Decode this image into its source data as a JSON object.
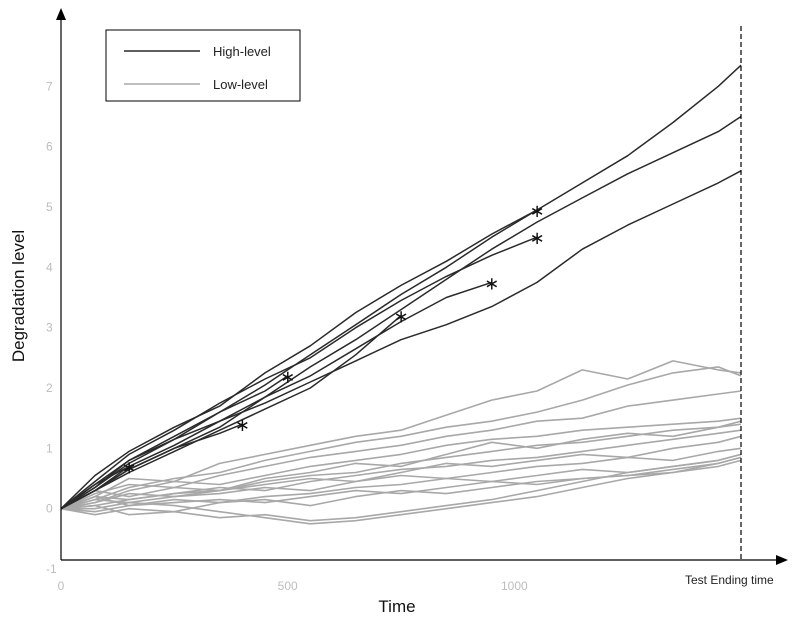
{
  "chart_data": {
    "type": "line",
    "title": "",
    "xlabel": "Time",
    "ylabel": "Degradation level",
    "xlim": [
      0,
      1500
    ],
    "ylim": [
      -1,
      8
    ],
    "x_ticks": [
      0,
      500,
      1000
    ],
    "y_ticks": [
      -1,
      0,
      1,
      2,
      3,
      4,
      5,
      6,
      7
    ],
    "annotation": "Test Ending time",
    "test_end_x": 1500,
    "legend": {
      "placement": "top-left",
      "entries": [
        {
          "name": "High-level",
          "color": "#2a2a2a"
        },
        {
          "name": "Low-level",
          "color": "#a8a8a8"
        }
      ]
    },
    "series": [
      {
        "group": "High-level",
        "color": "#2a2a2a",
        "marker_end": false,
        "x": [
          0,
          75,
          150,
          250,
          350,
          450,
          550,
          650,
          750,
          850,
          950,
          1050,
          1150,
          1250,
          1350,
          1450,
          1500
        ],
        "y": [
          0,
          0.55,
          0.95,
          1.35,
          1.7,
          2.25,
          2.7,
          3.25,
          3.7,
          4.1,
          4.55,
          4.95,
          5.4,
          5.85,
          6.4,
          7.0,
          7.35
        ]
      },
      {
        "group": "High-level",
        "color": "#2a2a2a",
        "marker_end": false,
        "x": [
          0,
          75,
          150,
          250,
          350,
          450,
          550,
          650,
          750,
          850,
          950,
          1050,
          1150,
          1250,
          1350,
          1450,
          1500
        ],
        "y": [
          0,
          0.3,
          0.65,
          1.0,
          1.35,
          1.85,
          2.35,
          2.8,
          3.3,
          3.8,
          4.3,
          4.75,
          5.15,
          5.55,
          5.9,
          6.25,
          6.5
        ]
      },
      {
        "group": "High-level",
        "color": "#2a2a2a",
        "marker_end": false,
        "x": [
          0,
          75,
          150,
          250,
          350,
          450,
          550,
          650,
          750,
          850,
          950,
          1050,
          1150,
          1250,
          1350,
          1450,
          1500
        ],
        "y": [
          0,
          0.4,
          0.8,
          1.15,
          1.45,
          1.75,
          2.1,
          2.45,
          2.8,
          3.05,
          3.35,
          3.75,
          4.3,
          4.7,
          5.05,
          5.4,
          5.6
        ]
      },
      {
        "group": "High-level",
        "color": "#2a2a2a",
        "marker_end": true,
        "x": [
          0,
          75,
          150,
          250,
          350,
          450,
          550,
          650,
          750,
          850,
          950,
          1050
        ],
        "y": [
          0,
          0.35,
          0.75,
          1.15,
          1.6,
          2.05,
          2.55,
          3.05,
          3.55,
          4.0,
          4.5,
          4.95
        ]
      },
      {
        "group": "High-level",
        "color": "#2a2a2a",
        "marker_end": true,
        "x": [
          0,
          75,
          150,
          250,
          350,
          450,
          550,
          650,
          750,
          850,
          950,
          1050
        ],
        "y": [
          0,
          0.45,
          0.9,
          1.3,
          1.75,
          2.15,
          2.5,
          3.0,
          3.45,
          3.85,
          4.2,
          4.5
        ]
      },
      {
        "group": "High-level",
        "color": "#2a2a2a",
        "marker_end": true,
        "x": [
          0,
          75,
          150,
          250,
          350,
          450,
          550,
          650,
          750,
          850,
          950
        ],
        "y": [
          0,
          0.4,
          0.7,
          1.05,
          1.45,
          1.85,
          2.2,
          2.65,
          3.1,
          3.5,
          3.75
        ]
      },
      {
        "group": "High-level",
        "color": "#2a2a2a",
        "marker_end": true,
        "x": [
          0,
          75,
          150,
          250,
          350,
          450,
          550,
          650,
          750
        ],
        "y": [
          0,
          0.3,
          0.6,
          0.95,
          1.3,
          1.65,
          2.0,
          2.55,
          3.2
        ]
      },
      {
        "group": "High-level",
        "color": "#2a2a2a",
        "marker_end": true,
        "x": [
          0,
          75,
          150,
          250,
          350,
          450,
          500
        ],
        "y": [
          0,
          0.35,
          0.8,
          1.2,
          1.6,
          1.95,
          2.2
        ]
      },
      {
        "group": "High-level",
        "color": "#2a2a2a",
        "marker_end": true,
        "x": [
          0,
          75,
          150,
          250,
          350,
          400
        ],
        "y": [
          0,
          0.3,
          0.65,
          1.0,
          1.25,
          1.4
        ]
      },
      {
        "group": "High-level",
        "color": "#2a2a2a",
        "marker_end": true,
        "x": [
          0,
          75,
          150
        ],
        "y": [
          0,
          0.3,
          0.7
        ]
      },
      {
        "group": "Low-level",
        "color": "#a8a8a8",
        "marker_end": false,
        "x": [
          0,
          75,
          150,
          250,
          350,
          450,
          550,
          650,
          750,
          850,
          950,
          1050,
          1150,
          1250,
          1350,
          1450,
          1500
        ],
        "y": [
          0,
          0.2,
          0.5,
          0.45,
          0.75,
          0.9,
          1.05,
          1.2,
          1.3,
          1.55,
          1.8,
          1.95,
          2.3,
          2.15,
          2.45,
          2.3,
          2.25
        ]
      },
      {
        "group": "Low-level",
        "color": "#a8a8a8",
        "marker_end": false,
        "x": [
          0,
          75,
          150,
          250,
          350,
          450,
          550,
          650,
          750,
          850,
          950,
          1050,
          1150,
          1250,
          1350,
          1450,
          1500
        ],
        "y": [
          0,
          0.15,
          0.35,
          0.5,
          0.6,
          0.8,
          0.95,
          1.1,
          1.2,
          1.35,
          1.45,
          1.6,
          1.8,
          2.05,
          2.25,
          2.35,
          2.2
        ]
      },
      {
        "group": "Low-level",
        "color": "#a8a8a8",
        "marker_end": false,
        "x": [
          0,
          75,
          150,
          250,
          350,
          450,
          550,
          650,
          750,
          850,
          950,
          1050,
          1150,
          1250,
          1350,
          1450,
          1500
        ],
        "y": [
          0,
          0.25,
          0.4,
          0.35,
          0.55,
          0.7,
          0.85,
          0.95,
          1.05,
          1.2,
          1.3,
          1.45,
          1.5,
          1.7,
          1.8,
          1.9,
          1.95
        ]
      },
      {
        "group": "Low-level",
        "color": "#a8a8a8",
        "marker_end": false,
        "x": [
          0,
          75,
          150,
          250,
          350,
          450,
          550,
          650,
          750,
          850,
          950,
          1050,
          1150,
          1250,
          1350,
          1450,
          1500
        ],
        "y": [
          0,
          0.1,
          0.3,
          0.45,
          0.4,
          0.55,
          0.7,
          0.8,
          0.9,
          1.05,
          1.15,
          1.2,
          1.3,
          1.35,
          1.4,
          1.45,
          1.5
        ]
      },
      {
        "group": "Low-level",
        "color": "#a8a8a8",
        "marker_end": false,
        "x": [
          0,
          75,
          150,
          250,
          350,
          450,
          550,
          650,
          750,
          850,
          950,
          1050,
          1150,
          1250,
          1350,
          1450,
          1500
        ],
        "y": [
          0,
          0.3,
          0.2,
          0.35,
          0.3,
          0.5,
          0.6,
          0.75,
          0.7,
          0.9,
          1.1,
          1.0,
          1.15,
          1.25,
          1.2,
          1.35,
          1.4
        ]
      },
      {
        "group": "Low-level",
        "color": "#a8a8a8",
        "marker_end": false,
        "x": [
          0,
          75,
          150,
          250,
          350,
          450,
          550,
          650,
          750,
          850,
          950,
          1050,
          1150,
          1250,
          1350,
          1450,
          1500
        ],
        "y": [
          0,
          0.05,
          0.15,
          0.25,
          0.3,
          0.45,
          0.55,
          0.6,
          0.75,
          0.85,
          0.95,
          1.05,
          1.1,
          1.2,
          1.3,
          1.35,
          1.45
        ]
      },
      {
        "group": "Low-level",
        "color": "#a8a8a8",
        "marker_end": false,
        "x": [
          0,
          75,
          150,
          250,
          350,
          450,
          550,
          650,
          750,
          850,
          950,
          1050,
          1150,
          1250,
          1350,
          1450,
          1500
        ],
        "y": [
          0,
          0.2,
          0.15,
          0.25,
          0.35,
          0.3,
          0.45,
          0.55,
          0.65,
          0.7,
          0.8,
          0.85,
          0.95,
          1.05,
          1.15,
          1.25,
          1.3
        ]
      },
      {
        "group": "Low-level",
        "color": "#a8a8a8",
        "marker_end": false,
        "x": [
          0,
          75,
          150,
          250,
          350,
          450,
          550,
          650,
          750,
          850,
          950,
          1050,
          1150,
          1250,
          1350,
          1450,
          1500
        ],
        "y": [
          0,
          0.1,
          0.25,
          0.2,
          0.3,
          0.4,
          0.5,
          0.45,
          0.6,
          0.75,
          0.7,
          0.8,
          0.9,
          0.85,
          1.0,
          1.1,
          1.2
        ]
      },
      {
        "group": "Low-level",
        "color": "#a8a8a8",
        "marker_end": false,
        "x": [
          0,
          75,
          150,
          250,
          350,
          450,
          550,
          650,
          750,
          850,
          950,
          1050,
          1150,
          1250,
          1350,
          1450,
          1500
        ],
        "y": [
          0,
          0.15,
          0.1,
          0.2,
          0.25,
          0.35,
          0.3,
          0.45,
          0.55,
          0.5,
          0.6,
          0.7,
          0.75,
          0.85,
          0.8,
          0.95,
          1.0
        ]
      },
      {
        "group": "Low-level",
        "color": "#a8a8a8",
        "marker_end": false,
        "x": [
          0,
          75,
          150,
          250,
          350,
          450,
          550,
          650,
          750,
          850,
          950,
          1050,
          1150,
          1250,
          1350,
          1450,
          1500
        ],
        "y": [
          0,
          0.2,
          0.05,
          0.15,
          0.1,
          0.2,
          0.25,
          0.35,
          0.4,
          0.5,
          0.45,
          0.55,
          0.65,
          0.6,
          0.7,
          0.8,
          0.9
        ]
      },
      {
        "group": "Low-level",
        "color": "#a8a8a8",
        "marker_end": false,
        "x": [
          0,
          75,
          150,
          250,
          350,
          450,
          550,
          650,
          750,
          850,
          950,
          1050,
          1150,
          1250,
          1350,
          1450,
          1500
        ],
        "y": [
          0,
          -0.05,
          0.05,
          0.1,
          0.15,
          0.1,
          0.2,
          0.3,
          0.25,
          0.35,
          0.45,
          0.4,
          0.5,
          0.55,
          0.65,
          0.75,
          0.85
        ]
      },
      {
        "group": "Low-level",
        "color": "#a8a8a8",
        "marker_end": false,
        "x": [
          0,
          75,
          150,
          250,
          350,
          450,
          550,
          650,
          750,
          850,
          950,
          1050,
          1150,
          1250,
          1350,
          1450,
          1500
        ],
        "y": [
          0,
          -0.1,
          0.0,
          -0.05,
          0.1,
          0.15,
          0.05,
          0.2,
          0.3,
          0.25,
          0.35,
          0.45,
          0.5,
          0.55,
          0.6,
          0.7,
          0.8
        ]
      },
      {
        "group": "Low-level",
        "color": "#a8a8a8",
        "marker_end": false,
        "x": [
          0,
          75,
          150,
          250,
          350,
          450,
          550,
          650,
          750,
          850,
          950,
          1050,
          1150,
          1250,
          1350,
          1450,
          1500
        ],
        "y": [
          0,
          0.05,
          -0.1,
          -0.05,
          -0.15,
          -0.1,
          -0.2,
          -0.15,
          -0.05,
          0.05,
          0.15,
          0.3,
          0.45,
          0.6,
          0.7,
          0.8,
          0.9
        ]
      },
      {
        "group": "Low-level",
        "color": "#a8a8a8",
        "marker_end": false,
        "x": [
          0,
          75,
          150,
          250,
          350,
          450,
          550,
          650,
          750,
          850,
          950,
          1050,
          1150,
          1250,
          1350,
          1450,
          1500
        ],
        "y": [
          0,
          0.0,
          0.1,
          0.05,
          -0.05,
          -0.15,
          -0.25,
          -0.2,
          -0.1,
          0.0,
          0.1,
          0.2,
          0.35,
          0.5,
          0.6,
          0.75,
          0.85
        ]
      }
    ]
  }
}
